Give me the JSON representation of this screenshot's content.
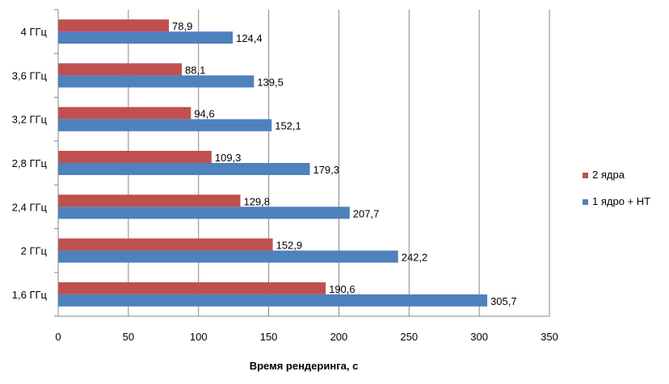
{
  "chart_data": {
    "type": "bar",
    "orientation": "horizontal",
    "categories": [
      "4 ГГц",
      "3,6 ГГц",
      "3,2 ГГц",
      "2,8 ГГц",
      "2,4 ГГц",
      "2 ГГц",
      "1,6 ГГц"
    ],
    "series": [
      {
        "name": "2 ядра",
        "color": "#c0504d",
        "values": [
          78.9,
          88.1,
          94.6,
          109.3,
          129.8,
          152.9,
          190.6
        ],
        "labels": [
          "78,9",
          "88,1",
          "94,6",
          "109,3",
          "129,8",
          "152,9",
          "190,6"
        ]
      },
      {
        "name": "1 ядро + HT",
        "color": "#4f81bd",
        "values": [
          124.4,
          139.5,
          152.1,
          179.3,
          207.7,
          242.2,
          305.7
        ],
        "labels": [
          "124,4",
          "139,5",
          "152,1",
          "179,3",
          "207,7",
          "242,2",
          "305,7"
        ]
      }
    ],
    "xlabel": "Время рендеринга, с",
    "ylabel": "",
    "title": "",
    "xlim": [
      0,
      350
    ],
    "xticks": [
      0,
      50,
      100,
      150,
      200,
      250,
      300,
      350
    ],
    "grid": "vertical",
    "legend": "right"
  }
}
